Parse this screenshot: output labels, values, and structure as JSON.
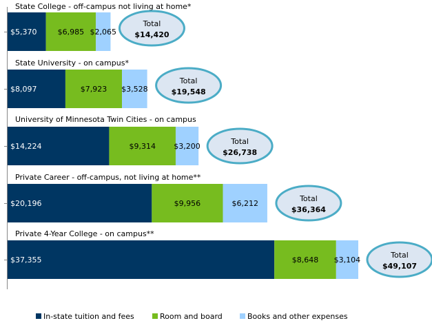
{
  "chart_data": {
    "type": "bar",
    "orientation": "horizontal",
    "stacked": true,
    "title": "",
    "xlabel": "",
    "ylabel": "",
    "categories": [
      "State College - off-campus not living at home*",
      "State University - on campus*",
      "University of Minnesota Twin Cities - on campus",
      "Private Career - off-campus, not living at home**",
      "Private 4-Year College - on campus**"
    ],
    "series": [
      {
        "name": "In-state tuition and fees",
        "color": "#003662",
        "label_color": "#ffffff",
        "values": [
          5370,
          8097,
          14224,
          20196,
          37355
        ],
        "labels": [
          "$5,370",
          "$8,097",
          "$14,224",
          "$20,196",
          "$37,355"
        ]
      },
      {
        "name": "Room and board",
        "color": "#77bc1f",
        "label_color": "#000000",
        "values": [
          6985,
          7923,
          9314,
          9956,
          8648
        ],
        "labels": [
          "$6,985",
          "$7,923",
          "$9,314",
          "$9,956",
          "$8,648"
        ]
      },
      {
        "name": "Books and other expenses",
        "color": "#9fd1ff",
        "label_color": "#000000",
        "values": [
          2065,
          3528,
          3200,
          6212,
          3104
        ],
        "labels": [
          "$2,065",
          "$3,528",
          "$3,200",
          "$6,212",
          "$3,104"
        ]
      }
    ],
    "totals": {
      "label": "Total",
      "values": [
        "$14,420",
        "$19,548",
        "$26,738",
        "$36,364",
        "$49,107"
      ],
      "fill": "#dce6f2",
      "stroke": "#4bacc6"
    },
    "xlim": [
      0,
      49107
    ],
    "grid": false,
    "legend": "bottom"
  }
}
